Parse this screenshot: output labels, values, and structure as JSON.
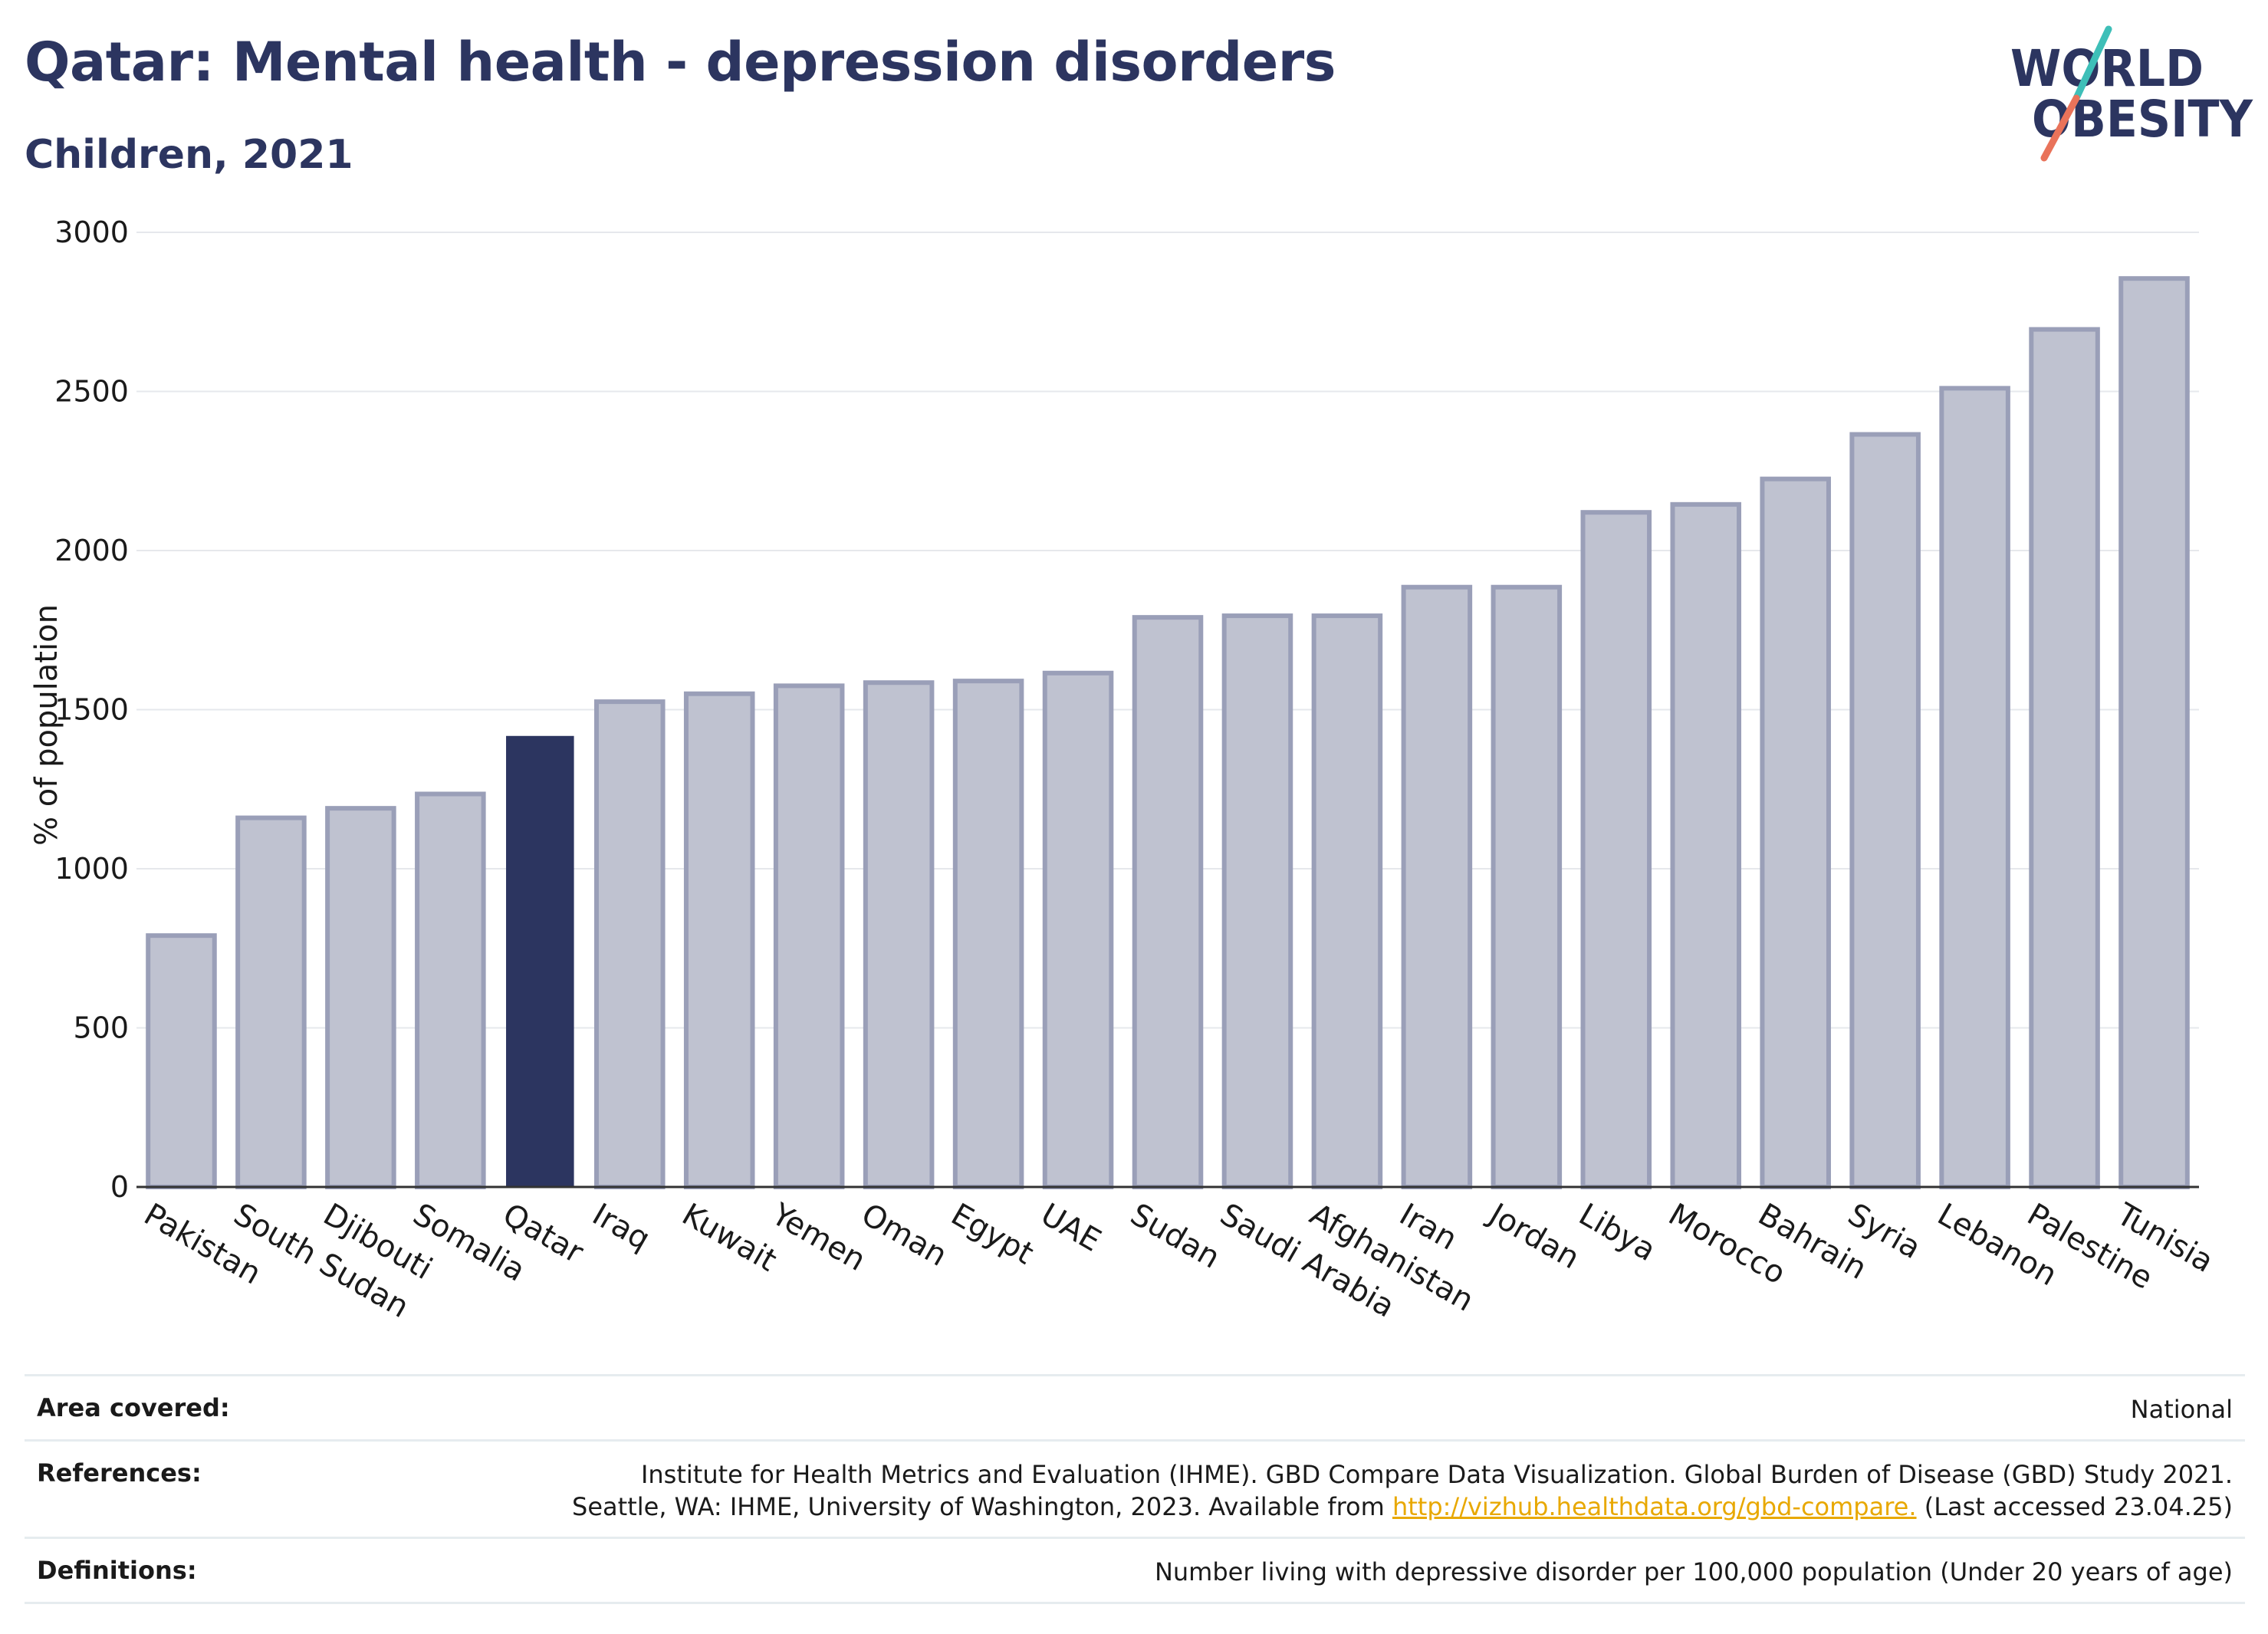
{
  "header": {
    "title": "Qatar: Mental health - depression disorders",
    "subtitle": "Children, 2021"
  },
  "logo": {
    "line1": "WORLD",
    "line2": "OBESITY"
  },
  "colors": {
    "highlight": "#2c3560",
    "bar_fill": "#bfc2d0",
    "bar_stroke": "#9a9fb8",
    "grid": "#e6e8ec",
    "link": "#e8a800",
    "logo_teal": "#3ebfb8",
    "logo_coral": "#e9735a"
  },
  "chart_data": {
    "type": "bar",
    "ylabel": "% of population",
    "ylim": [
      0,
      3000
    ],
    "yticks": [
      0,
      500,
      1000,
      1500,
      2000,
      2500,
      3000
    ],
    "highlight": "Qatar",
    "categories": [
      "Pakistan",
      "South Sudan",
      "Djibouti",
      "Somalia",
      "Qatar",
      "Iraq",
      "Kuwait",
      "Yemen",
      "Oman",
      "Egypt",
      "UAE",
      "Sudan",
      "Saudi Arabia",
      "Afghanistan",
      "Iran",
      "Jordan",
      "Libya",
      "Morocco",
      "Bahrain",
      "Syria",
      "Lebanon",
      "Palestine",
      "Tunisia"
    ],
    "values": [
      790,
      1160,
      1190,
      1235,
      1415,
      1525,
      1550,
      1575,
      1585,
      1590,
      1615,
      1790,
      1795,
      1795,
      1885,
      1885,
      2120,
      2145,
      2225,
      2365,
      2510,
      2695,
      2855
    ]
  },
  "info": {
    "area_label": "Area covered:",
    "area_value": "National",
    "references_label": "References:",
    "references_line1": "Institute for Health Metrics and Evaluation (IHME). GBD Compare Data Visualization. Global Burden of Disease (GBD) Study 2021.",
    "references_line2_pre": "Seattle, WA: IHME, University of Washington, 2023. Available from ",
    "references_link": "http://vizhub.healthdata.org/gbd-compare.",
    "references_line2_post": " (Last accessed 23.04.25)",
    "definitions_label": "Definitions:",
    "definitions_value": "Number living with depressive disorder per 100,000 population (Under 20 years of age)"
  }
}
